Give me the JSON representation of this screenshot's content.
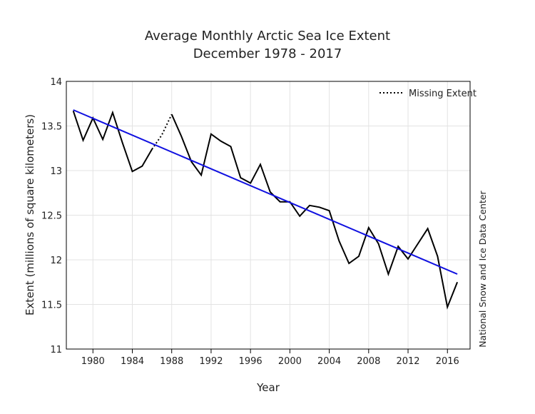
{
  "chart_data": {
    "type": "line",
    "title": "Average Monthly Arctic Sea Ice Extent",
    "subtitle": "December 1978 - 2017",
    "xlabel": "Year",
    "ylabel": "Extent (millions of square kilometers)",
    "credit": "National Snow and Ice Data Center",
    "xlim": [
      1977.3,
      2018.3
    ],
    "ylim": [
      11,
      14
    ],
    "x_ticks": [
      1980,
      1984,
      1988,
      1992,
      1996,
      2000,
      2004,
      2008,
      2012,
      2016
    ],
    "y_ticks": [
      11,
      11.5,
      12,
      12.5,
      13,
      13.5,
      14
    ],
    "y_tick_labels": [
      "11",
      "11.5",
      "12",
      "12.5",
      "13",
      "13.5",
      "14"
    ],
    "grid": true,
    "legend": {
      "placement": "top-right",
      "entries": [
        {
          "label": "Missing Extent",
          "style": "dotted"
        }
      ]
    },
    "series": [
      {
        "name": "",
        "style": "solid",
        "color": "#000000",
        "x": [
          1978,
          1979,
          1980,
          1981,
          1982,
          1983,
          1984,
          1985,
          1986
        ],
        "y": [
          13.67,
          13.34,
          13.59,
          13.35,
          13.65,
          13.31,
          12.99,
          13.05,
          13.24
        ]
      },
      {
        "name": "Missing Extent",
        "style": "dotted",
        "color": "#000000",
        "x": [
          1986,
          1987,
          1988
        ],
        "y": [
          13.24,
          13.4,
          13.63
        ]
      },
      {
        "name": "",
        "style": "solid",
        "color": "#000000",
        "x": [
          1988,
          1989,
          1990,
          1991,
          1992,
          1993,
          1994,
          1995,
          1996,
          1997,
          1998,
          1999,
          2000,
          2001,
          2002,
          2003,
          2004,
          2005,
          2006,
          2007,
          2008,
          2009,
          2010,
          2011,
          2012,
          2013,
          2014,
          2015,
          2016,
          2017
        ],
        "y": [
          13.63,
          13.38,
          13.1,
          12.95,
          13.41,
          13.33,
          13.27,
          12.92,
          12.86,
          13.07,
          12.76,
          12.65,
          12.65,
          12.49,
          12.61,
          12.59,
          12.55,
          12.21,
          11.96,
          12.04,
          12.36,
          12.18,
          11.84,
          12.15,
          12.01,
          12.18,
          12.35,
          12.04,
          11.47,
          11.75
        ]
      },
      {
        "name": "",
        "style": "trend",
        "color": "#1010e0",
        "x": [
          1978,
          2017
        ],
        "y": [
          13.68,
          11.84
        ]
      }
    ]
  }
}
